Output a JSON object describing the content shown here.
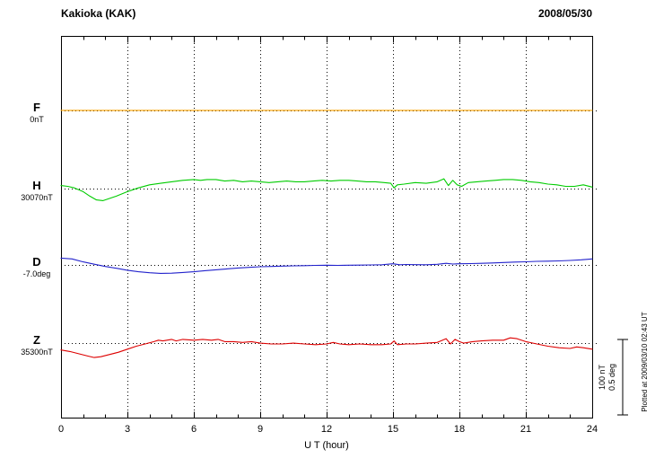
{
  "chart_data": {
    "type": "line",
    "title": "Kakioka (KAK)",
    "date": "2008/05/30",
    "xlabel": "U T (hour)",
    "x_range": [
      0,
      24
    ],
    "x_ticks": [
      0,
      3,
      6,
      9,
      12,
      15,
      18,
      21,
      24
    ],
    "grid": "dotted",
    "footnote": "Plotted at 2009/03/10 02:43 UT",
    "scale_bar": {
      "nT": 100,
      "deg": 0.5,
      "nT_label": "100 nT",
      "deg_label": "0.5 deg"
    },
    "series": [
      {
        "name": "F",
        "offset_label": "0nT",
        "unit": "nT",
        "color": "#FFA500",
        "baseline_y_frac": 0.195,
        "points": [
          [
            0,
            0
          ],
          [
            24,
            0
          ]
        ]
      },
      {
        "name": "H",
        "offset_label": "30070nT",
        "unit": "nT",
        "color": "#00CC00",
        "baseline_y_frac": 0.4,
        "points": [
          [
            0,
            4
          ],
          [
            0.3,
            3
          ],
          [
            0.6,
            1
          ],
          [
            1,
            -4
          ],
          [
            1.3,
            -10
          ],
          [
            1.6,
            -15
          ],
          [
            1.9,
            -16
          ],
          [
            2.2,
            -13
          ],
          [
            2.5,
            -10
          ],
          [
            3,
            -4
          ],
          [
            3.5,
            1
          ],
          [
            4,
            5
          ],
          [
            4.5,
            7
          ],
          [
            5,
            9
          ],
          [
            5.5,
            11
          ],
          [
            6,
            12
          ],
          [
            6.3,
            11
          ],
          [
            6.6,
            12
          ],
          [
            7,
            12
          ],
          [
            7.4,
            10
          ],
          [
            7.8,
            11
          ],
          [
            8.2,
            9
          ],
          [
            8.6,
            10
          ],
          [
            9,
            9
          ],
          [
            9.4,
            8
          ],
          [
            9.8,
            9
          ],
          [
            10.2,
            10
          ],
          [
            10.6,
            9
          ],
          [
            11,
            9
          ],
          [
            11.4,
            10
          ],
          [
            11.8,
            11
          ],
          [
            12.2,
            10
          ],
          [
            12.6,
            11
          ],
          [
            13,
            11
          ],
          [
            13.4,
            10
          ],
          [
            13.8,
            9
          ],
          [
            14.2,
            9
          ],
          [
            14.6,
            8
          ],
          [
            14.9,
            7
          ],
          [
            15.05,
            1
          ],
          [
            15.2,
            5
          ],
          [
            15.5,
            6
          ],
          [
            16,
            8
          ],
          [
            16.5,
            7
          ],
          [
            17,
            9
          ],
          [
            17.3,
            13
          ],
          [
            17.5,
            4
          ],
          [
            17.7,
            11
          ],
          [
            17.9,
            5
          ],
          [
            18.1,
            3
          ],
          [
            18.4,
            8
          ],
          [
            18.8,
            9
          ],
          [
            19.2,
            10
          ],
          [
            19.6,
            11
          ],
          [
            20,
            12
          ],
          [
            20.4,
            12
          ],
          [
            20.8,
            11
          ],
          [
            21.2,
            9
          ],
          [
            21.6,
            8
          ],
          [
            22,
            6
          ],
          [
            22.4,
            5
          ],
          [
            22.8,
            3
          ],
          [
            23.2,
            3
          ],
          [
            23.6,
            5
          ],
          [
            24,
            2
          ]
        ]
      },
      {
        "name": "D",
        "offset_label": "-7.0deg",
        "unit": "deg",
        "color": "#2222CC",
        "baseline_y_frac": 0.6,
        "points": [
          [
            0,
            0.045
          ],
          [
            0.5,
            0.04
          ],
          [
            1,
            0.02
          ],
          [
            1.5,
            0.005
          ],
          [
            2,
            -0.01
          ],
          [
            2.5,
            -0.022
          ],
          [
            3,
            -0.035
          ],
          [
            3.5,
            -0.045
          ],
          [
            4,
            -0.052
          ],
          [
            4.5,
            -0.056
          ],
          [
            5,
            -0.055
          ],
          [
            5.5,
            -0.05
          ],
          [
            6,
            -0.045
          ],
          [
            6.5,
            -0.038
          ],
          [
            7,
            -0.032
          ],
          [
            7.5,
            -0.026
          ],
          [
            8,
            -0.02
          ],
          [
            8.5,
            -0.016
          ],
          [
            9,
            -0.012
          ],
          [
            9.5,
            -0.01
          ],
          [
            10,
            -0.008
          ],
          [
            10.5,
            -0.006
          ],
          [
            11,
            -0.005
          ],
          [
            11.5,
            -0.003
          ],
          [
            12,
            -0.002
          ],
          [
            12.5,
            -0.003
          ],
          [
            13,
            -0.002
          ],
          [
            13.5,
            -0.001
          ],
          [
            14,
            0
          ],
          [
            14.5,
            0.001
          ],
          [
            15,
            0.008
          ],
          [
            15.3,
            0.001
          ],
          [
            15.6,
            0.003
          ],
          [
            16,
            0.002
          ],
          [
            16.5,
            0.001
          ],
          [
            17,
            0.004
          ],
          [
            17.4,
            0.011
          ],
          [
            17.7,
            0.006
          ],
          [
            18,
            0.008
          ],
          [
            18.5,
            0.009
          ],
          [
            19,
            0.011
          ],
          [
            19.5,
            0.013
          ],
          [
            20,
            0.016
          ],
          [
            20.5,
            0.019
          ],
          [
            21,
            0.021
          ],
          [
            21.5,
            0.024
          ],
          [
            22,
            0.025
          ],
          [
            22.5,
            0.027
          ],
          [
            23,
            0.03
          ],
          [
            23.5,
            0.034
          ],
          [
            24,
            0.04
          ]
        ]
      },
      {
        "name": "Z",
        "offset_label": "35300nT",
        "unit": "nT",
        "color": "#DD0000",
        "baseline_y_frac": 0.805,
        "points": [
          [
            0,
            -9
          ],
          [
            0.4,
            -11
          ],
          [
            0.8,
            -14
          ],
          [
            1.2,
            -17
          ],
          [
            1.5,
            -19
          ],
          [
            1.8,
            -18
          ],
          [
            2.2,
            -15
          ],
          [
            2.6,
            -12
          ],
          [
            3,
            -8
          ],
          [
            3.4,
            -4
          ],
          [
            3.8,
            -1
          ],
          [
            4.2,
            2
          ],
          [
            4.4,
            4
          ],
          [
            4.6,
            3
          ],
          [
            5,
            5
          ],
          [
            5.2,
            3
          ],
          [
            5.5,
            5
          ],
          [
            6,
            4
          ],
          [
            6.4,
            5
          ],
          [
            6.8,
            4
          ],
          [
            7.1,
            5
          ],
          [
            7.4,
            2
          ],
          [
            7.8,
            2
          ],
          [
            8.2,
            1
          ],
          [
            8.6,
            2
          ],
          [
            9,
            0
          ],
          [
            9.5,
            -1
          ],
          [
            10,
            -1
          ],
          [
            10.5,
            0
          ],
          [
            11,
            -1
          ],
          [
            11.5,
            -2
          ],
          [
            12,
            -1
          ],
          [
            12.3,
            1
          ],
          [
            12.6,
            -1
          ],
          [
            13,
            -2
          ],
          [
            13.5,
            -1
          ],
          [
            14,
            -2
          ],
          [
            14.5,
            -2
          ],
          [
            14.9,
            -1
          ],
          [
            15.05,
            3
          ],
          [
            15.2,
            -2
          ],
          [
            15.6,
            -1
          ],
          [
            16,
            -1
          ],
          [
            16.5,
            0
          ],
          [
            17,
            1
          ],
          [
            17.4,
            6
          ],
          [
            17.6,
            -1
          ],
          [
            17.8,
            5
          ],
          [
            18,
            2
          ],
          [
            18.2,
            0
          ],
          [
            18.6,
            2
          ],
          [
            19,
            3
          ],
          [
            19.5,
            4
          ],
          [
            20,
            4
          ],
          [
            20.3,
            7
          ],
          [
            20.6,
            6
          ],
          [
            21,
            2
          ],
          [
            21.5,
            -1
          ],
          [
            22,
            -4
          ],
          [
            22.5,
            -6
          ],
          [
            23,
            -7
          ],
          [
            23.3,
            -5
          ],
          [
            23.6,
            -6
          ],
          [
            24,
            -8
          ]
        ]
      }
    ]
  }
}
